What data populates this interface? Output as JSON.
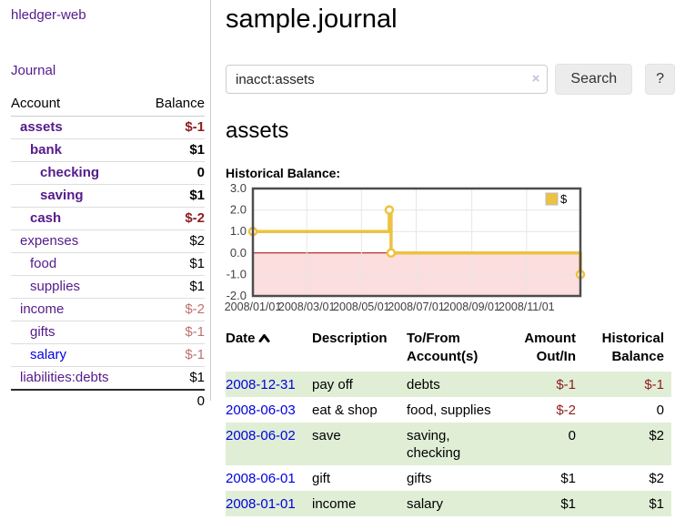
{
  "app": {
    "brand": "hledger-web",
    "nav_journal": "Journal"
  },
  "colors": {
    "link_purple": "#551a8b",
    "link_blue": "#0000e0",
    "negative_strong": "#8f1d1d",
    "negative_soft": "#bf7070",
    "row_stripe_green": "#e0eed6",
    "chart_line_gold": "#edc240",
    "chart_negative_fill": "#fcdede",
    "chart_zero_line": "#990000"
  },
  "sidebar": {
    "headers": [
      "Account",
      "Balance"
    ],
    "accounts": [
      {
        "name": "assets",
        "indent": 0,
        "bold": true,
        "link": "purple",
        "balance": "$-1",
        "balance_style": "neg-strong"
      },
      {
        "name": "bank",
        "indent": 1,
        "bold": true,
        "link": "purple",
        "balance": "$1",
        "balance_style": "plain"
      },
      {
        "name": "checking",
        "indent": 2,
        "bold": true,
        "link": "purple",
        "balance": "0",
        "balance_style": "plain"
      },
      {
        "name": "saving",
        "indent": 2,
        "bold": true,
        "link": "purple",
        "balance": "$1",
        "balance_style": "plain"
      },
      {
        "name": "cash",
        "indent": 1,
        "bold": true,
        "link": "purple",
        "balance": "$-2",
        "balance_style": "neg-strong"
      },
      {
        "name": "expenses",
        "indent": 0,
        "bold": false,
        "link": "purple",
        "balance": "$2",
        "balance_style": "plain"
      },
      {
        "name": "food",
        "indent": 1,
        "bold": false,
        "link": "purple",
        "balance": "$1",
        "balance_style": "plain"
      },
      {
        "name": "supplies",
        "indent": 1,
        "bold": false,
        "link": "purple",
        "balance": "$1",
        "balance_style": "plain"
      },
      {
        "name": "income",
        "indent": 0,
        "bold": false,
        "link": "purple",
        "balance": "$-2",
        "balance_style": "neg-soft"
      },
      {
        "name": "gifts",
        "indent": 1,
        "bold": false,
        "link": "purple",
        "balance": "$-1",
        "balance_style": "neg-soft"
      },
      {
        "name": "salary",
        "indent": 1,
        "bold": false,
        "link": "blue",
        "balance": "$-1",
        "balance_style": "neg-soft"
      },
      {
        "name": "liabilities:debts",
        "indent": 0,
        "bold": false,
        "link": "purple",
        "balance": "$1",
        "balance_style": "plain"
      }
    ],
    "total": "0"
  },
  "header": {
    "title": "sample.journal"
  },
  "search": {
    "value": "inacct:assets",
    "clear_icon": "×",
    "button": "Search",
    "help_button": "?"
  },
  "account_page": {
    "heading": "assets",
    "chart_label": "Historical Balance:"
  },
  "chart_data": {
    "type": "line",
    "step": true,
    "title": "Historical Balance:",
    "series": [
      {
        "name": "$",
        "color": "#edc240",
        "points": [
          [
            "2008-01-01",
            1
          ],
          [
            "2008-06-01",
            2
          ],
          [
            "2008-06-03",
            0
          ],
          [
            "2008-12-31",
            -1
          ]
        ]
      }
    ],
    "ylim": [
      -2,
      3
    ],
    "yticks": [
      3,
      2,
      1,
      0,
      -1,
      -2
    ],
    "ytick_labels": [
      "3.0",
      "2.0",
      "1.0",
      "0.0",
      "-1.0",
      "-2.0"
    ],
    "xticks": [
      "2008-01-01",
      "2008-03-01",
      "2008-05-01",
      "2008-07-01",
      "2008-09-01",
      "2008-11-01"
    ],
    "xtick_labels": [
      "2008/01/01",
      "2008/03/01",
      "2008/05/01",
      "2008/07/01",
      "2008/09/01",
      "2008/11/01"
    ],
    "legend": {
      "position": "top-right",
      "entries": [
        "$"
      ]
    },
    "grid": true,
    "negative_region_fill": "#fcdede",
    "zero_line_color": "#990000"
  },
  "register": {
    "headers": {
      "date": "Date",
      "description": "Description",
      "account": "To/From Account(s)",
      "amount": "Amount Out/In",
      "balance": "Historical Balance"
    },
    "sort": {
      "column": "date",
      "direction": "ascending"
    },
    "rows": [
      {
        "date": "2008-12-31",
        "description": "pay off",
        "account": "debts",
        "amount": "$-1",
        "balance": "$-1"
      },
      {
        "date": "2008-06-03",
        "description": "eat & shop",
        "account": "food, supplies",
        "amount": "$-2",
        "balance": "0"
      },
      {
        "date": "2008-06-02",
        "description": "save",
        "account": "saving, checking",
        "amount": "0",
        "balance": "$2"
      },
      {
        "date": "2008-06-01",
        "description": "gift",
        "account": "gifts",
        "amount": "$1",
        "balance": "$2"
      },
      {
        "date": "2008-01-01",
        "description": "income",
        "account": "salary",
        "amount": "$1",
        "balance": "$1"
      }
    ]
  }
}
